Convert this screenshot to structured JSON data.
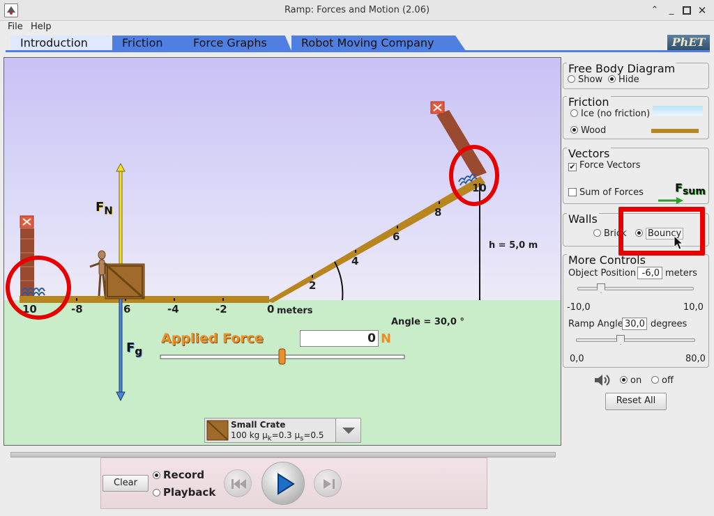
{
  "window": {
    "title": "Ramp: Forces and Motion (2.06)"
  },
  "menu": {
    "file": "File",
    "help": "Help"
  },
  "tabs": [
    {
      "label": "Introduction",
      "active": true
    },
    {
      "label": "Friction"
    },
    {
      "label": "Force Graphs"
    },
    {
      "label": "Robot Moving Company"
    }
  ],
  "logo": "PhET",
  "scene": {
    "ticks": [
      "10",
      "-8",
      "6",
      "-4",
      "-2",
      "0",
      "2",
      "4",
      "6",
      "8",
      "10"
    ],
    "meters_label": "meters",
    "height_label": "h = 5,0 m",
    "angle_label": "Angle = 30,0 °",
    "fn_label": "F",
    "fn_sub": "N",
    "fg_label": "F",
    "fg_sub": "g",
    "applied_force_label": "Applied Force",
    "applied_force_value": "0",
    "applied_force_unit": "N",
    "object": {
      "name": "Small Crate",
      "details": "100 kg μ",
      "mu_k_sub": "k",
      "mu_k_val": "=0.3 μ",
      "mu_s_sub": "s",
      "mu_s_val": "=0.5"
    }
  },
  "panels": {
    "fbd": {
      "title": "Free Body Diagram",
      "show": "Show",
      "hide": "Hide"
    },
    "friction": {
      "title": "Friction",
      "ice": "Ice (no friction)",
      "wood": "Wood"
    },
    "vectors": {
      "title": "Vectors",
      "force_vectors": "Force Vectors",
      "sum_forces": "Sum of Forces",
      "fsum": "F",
      "fsum_sub": "sum"
    },
    "walls": {
      "title": "Walls",
      "brick": "Brick",
      "bouncy": "Bouncy"
    },
    "more": {
      "title": "More Controls",
      "object_position_label": "Object Position",
      "object_position_value": "-6,0",
      "object_position_unit": "meters",
      "pos_min": "-10,0",
      "pos_max": "10,0",
      "ramp_angle_label": "Ramp Angle",
      "ramp_angle_value": "30,0",
      "ramp_angle_unit": "degrees",
      "angle_min": "0,0",
      "angle_max": "80,0"
    }
  },
  "sound": {
    "on": "on",
    "off": "off"
  },
  "reset_all": "Reset All",
  "playback": {
    "clear": "Clear",
    "record": "Record",
    "playback": "Playback"
  },
  "colors": {
    "tab_blue": "#4f7fe0",
    "ramp": "#b8861f",
    "annotation_red": "#e60000",
    "applied_force": "#e8902a"
  }
}
